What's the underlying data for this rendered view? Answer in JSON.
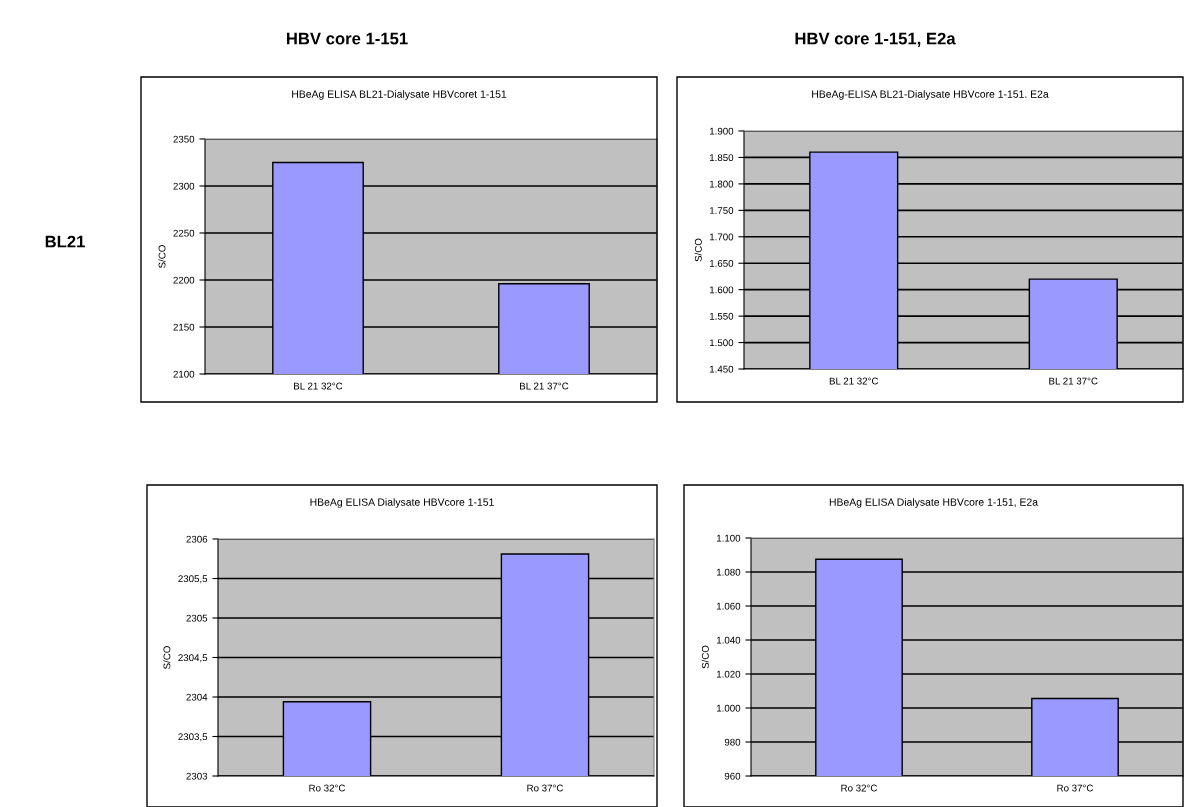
{
  "chart_data": [
    {
      "type": "bar",
      "title": "HBeAg ELISA BL21-Dialysate HBVcoret 1-151",
      "ylabel": "S/CO",
      "categories": [
        "BL 21 32°C",
        "BL 21 37°C"
      ],
      "values": [
        2325,
        2196
      ],
      "color": "#9999ff",
      "ylim": [
        2100,
        2350
      ],
      "yticks": [
        2100,
        2150,
        2200,
        2250,
        2300,
        2350
      ],
      "grid": "y",
      "annotations": [
        "HBV core 1-151",
        "BL21"
      ]
    },
    {
      "type": "bar",
      "title": "HBeAg-ELISA BL21-Dialysate HBVcore 1-151. E2a",
      "ylabel": "S/CO",
      "categories": [
        "BL 21 32°C",
        "BL 21 37°C"
      ],
      "values": [
        1860,
        1620
      ],
      "color": "#9999ff",
      "ylim": [
        1450,
        1900
      ],
      "yticks": [
        {
          "value": 1450,
          "label": "1.450"
        },
        {
          "value": 1500,
          "label": "1.500"
        },
        {
          "value": 1550,
          "label": "1.550"
        },
        {
          "value": 1600,
          "label": "1.600"
        },
        {
          "value": 1650,
          "label": "1.650"
        },
        {
          "value": 1700,
          "label": "1.700"
        },
        {
          "value": 1750,
          "label": "1.750"
        },
        {
          "value": 1800,
          "label": "1.800"
        },
        {
          "value": 1850,
          "label": "1.850"
        },
        {
          "value": 1900,
          "label": "1.900"
        }
      ],
      "grid": "y",
      "annotations": [
        "HBV core 1-151, E2a"
      ]
    },
    {
      "type": "bar",
      "title": "HBeAg ELISA Dialysate HBVcore 1-151",
      "ylabel": "S/CO",
      "categories": [
        "Ro 32°C",
        "Ro 37°C"
      ],
      "values": [
        2303.94,
        2305.81
      ],
      "color": "#9999ff",
      "ylim": [
        2303,
        2306
      ],
      "yticks": [
        2303,
        {
          "value": 2303.5,
          "label": "2303,5"
        },
        2304,
        {
          "value": 2304.5,
          "label": "2304,5"
        },
        2305,
        {
          "value": 2305.5,
          "label": "2305,5"
        },
        2306
      ],
      "grid": "y"
    },
    {
      "type": "bar",
      "title": "HBeAg ELISA Dialysate HBVcore 1-151, E2a",
      "ylabel": "S/CO",
      "categories": [
        "Ro 32°C",
        "Ro 37°C"
      ],
      "values": [
        1087.5,
        1005.6
      ],
      "color": "#9999ff",
      "ylim": [
        960,
        1100
      ],
      "yticks": [
        960,
        980,
        {
          "value": 1000,
          "label": "1.000"
        },
        {
          "value": 1020,
          "label": "1.020"
        },
        {
          "value": 1040,
          "label": "1.040"
        },
        {
          "value": 1060,
          "label": "1.060"
        },
        {
          "value": 1080,
          "label": "1.080"
        },
        {
          "value": 1100,
          "label": "1.100"
        }
      ],
      "grid": "y"
    }
  ]
}
